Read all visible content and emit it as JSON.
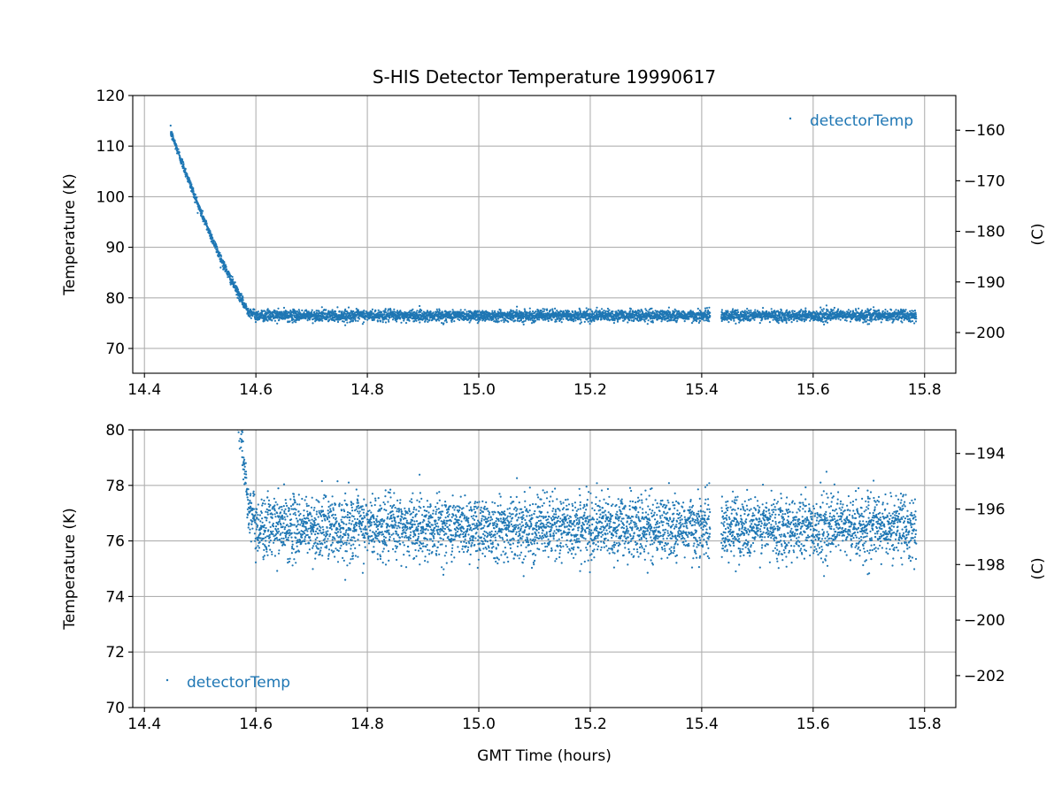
{
  "title": "S-HIS Detector Temperature 19990617",
  "chart_data": [
    {
      "type": "scatter",
      "panel": "top",
      "title": "S-HIS Detector Temperature 19990617",
      "xlabel": "",
      "ylabel": "Temperature (K)",
      "ylabel_right": "(C)",
      "xlim": [
        14.379,
        15.856
      ],
      "ylim": [
        65.1,
        120
      ],
      "xticks": [
        14.4,
        14.6,
        14.8,
        15.0,
        15.2,
        15.4,
        15.6,
        15.8
      ],
      "xtick_labels": [
        "14.4",
        "14.6",
        "14.8",
        "15.0",
        "15.2",
        "15.4",
        "15.6",
        "15.8"
      ],
      "yticks": [
        70,
        80,
        90,
        100,
        110,
        120
      ],
      "ytick_labels": [
        "70",
        "80",
        "90",
        "100",
        "110",
        "120"
      ],
      "yticks_right_c": [
        -200,
        -190,
        -180,
        -170,
        -160
      ],
      "ytick_right_labels": [
        "−200",
        "−190",
        "−180",
        "−170",
        "−160"
      ],
      "grid": true,
      "legend": {
        "entries": [
          "detectorTemp"
        ],
        "placement": "top-right"
      }
    },
    {
      "type": "scatter",
      "panel": "bottom",
      "xlabel": "GMT Time (hours)",
      "ylabel": "Temperature (K)",
      "ylabel_right": "(C)",
      "xlim": [
        14.379,
        15.856
      ],
      "ylim": [
        70,
        80
      ],
      "xticks": [
        14.4,
        14.6,
        14.8,
        15.0,
        15.2,
        15.4,
        15.6,
        15.8
      ],
      "xtick_labels": [
        "14.4",
        "14.6",
        "14.8",
        "15.0",
        "15.2",
        "15.4",
        "15.6",
        "15.8"
      ],
      "yticks": [
        70,
        72,
        74,
        76,
        78,
        80
      ],
      "ytick_labels": [
        "70",
        "72",
        "74",
        "76",
        "78",
        "80"
      ],
      "yticks_right_c": [
        -202,
        -200,
        -198,
        -196,
        -194
      ],
      "ytick_right_labels": [
        "−202",
        "−200",
        "−198",
        "−196",
        "−194"
      ],
      "grid": true,
      "legend": {
        "entries": [
          "detectorTemp"
        ],
        "placement": "bottom-left"
      }
    }
  ],
  "series": {
    "name": "detectorTemp",
    "color": "#1f77b4",
    "units": "K",
    "cooling_curve": [
      [
        14.447,
        112.8
      ],
      [
        14.47,
        106.0
      ],
      [
        14.5,
        97.3
      ],
      [
        14.53,
        89.5
      ],
      [
        14.55,
        84.7
      ],
      [
        14.57,
        80.5
      ],
      [
        14.585,
        77.5
      ],
      [
        14.6,
        76.6
      ]
    ],
    "steady_mean": 76.5,
    "steady_std": 0.55,
    "steady_min": 74.6,
    "steady_max": 78.9,
    "x_start": 14.447,
    "x_end": 15.785,
    "gap": [
      15.415,
      15.435
    ],
    "sample_interval_hours": 0.00025
  }
}
